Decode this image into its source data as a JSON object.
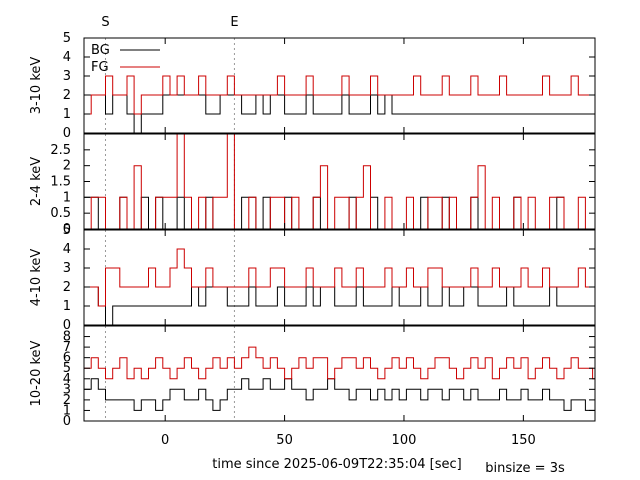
{
  "chart_data": {
    "type": "line",
    "style": "step",
    "xlabel": "time since 2025-06-09T22:35:04 [sec]",
    "xlim": [
      -34,
      180
    ],
    "xticks": [
      0,
      50,
      100,
      150
    ],
    "binsize_label": "binsize = 3s",
    "markers": [
      {
        "label": "S",
        "x": -25
      },
      {
        "label": "E",
        "x": 29
      }
    ],
    "colors": {
      "BG": "#000000",
      "FG": "#cc0000"
    },
    "legend": {
      "placement": "top-left",
      "entries": [
        "BG",
        "FG"
      ]
    },
    "panels": [
      {
        "ylabel": "3-10 keV",
        "ylim": [
          0,
          5
        ],
        "yticks": [
          0,
          1,
          2,
          3,
          4,
          5
        ],
        "series": [
          {
            "name": "BG",
            "x0": -34,
            "dx": 3,
            "values": [
              2,
              2,
              2,
              1,
              2,
              2,
              1,
              0,
              1,
              1,
              1,
              2,
              2,
              2,
              2,
              2,
              2,
              1,
              1,
              2,
              2,
              2,
              1,
              1,
              2,
              1,
              2,
              2,
              1,
              1,
              1,
              2,
              1,
              1,
              1,
              1,
              2,
              1,
              1,
              1,
              2,
              1,
              2,
              1,
              1,
              1,
              1,
              1,
              1,
              1,
              1,
              1,
              1,
              1,
              1,
              1,
              1,
              1,
              1,
              1,
              1,
              1,
              1,
              1,
              1,
              1,
              1,
              1,
              1,
              1,
              1,
              1,
              1,
              1,
              1
            ]
          },
          {
            "name": "FG",
            "x0": -34,
            "dx": 3,
            "values": [
              1,
              2,
              2,
              3,
              2,
              2,
              3,
              1,
              2,
              2,
              2,
              3,
              2,
              3,
              2,
              2,
              3,
              2,
              2,
              2,
              3,
              2,
              2,
              2,
              2,
              2,
              2,
              3,
              2,
              2,
              2,
              3,
              2,
              2,
              2,
              2,
              3,
              2,
              2,
              2,
              3,
              2,
              2,
              2,
              2,
              2,
              3,
              2,
              2,
              2,
              3,
              2,
              2,
              2,
              3,
              2,
              2,
              2,
              3,
              2,
              2,
              2,
              2,
              2,
              3,
              2,
              2,
              2,
              3,
              2,
              2,
              2,
              2,
              2,
              2
            ]
          }
        ]
      },
      {
        "ylabel": "2-4 keV",
        "ylim": [
          0,
          3
        ],
        "yticks": [
          0,
          0.5,
          1,
          1.5,
          2,
          2.5
        ],
        "series": [
          {
            "name": "BG",
            "x0": -34,
            "dx": 3,
            "values": [
              1,
              1,
              0,
              0,
              0,
              1,
              0,
              0,
              1,
              0,
              1,
              0,
              0,
              1,
              0,
              0,
              0,
              1,
              0,
              0,
              0,
              0,
              1,
              1,
              0,
              1,
              0,
              0,
              1,
              0,
              0,
              0,
              1,
              0,
              0,
              0,
              0,
              1,
              0,
              0,
              1,
              0,
              0,
              0,
              0,
              0,
              0,
              1,
              0,
              0,
              1,
              0,
              0,
              0,
              1,
              0,
              0,
              0,
              0,
              0,
              1,
              0,
              0,
              0,
              0,
              0,
              1,
              0,
              0,
              0,
              0,
              0,
              0,
              0,
              0
            ]
          },
          {
            "name": "FG",
            "x0": -34,
            "dx": 3,
            "values": [
              0,
              1,
              1,
              0,
              0,
              1,
              0,
              2,
              0,
              0,
              1,
              1,
              1,
              3,
              1,
              0,
              1,
              0,
              1,
              1,
              3,
              0,
              0,
              1,
              0,
              0,
              1,
              1,
              0,
              1,
              0,
              0,
              1,
              2,
              0,
              1,
              1,
              0,
              1,
              2,
              0,
              0,
              1,
              0,
              0,
              1,
              0,
              0,
              1,
              1,
              0,
              1,
              0,
              0,
              1,
              2,
              0,
              1,
              0,
              0,
              1,
              0,
              1,
              0,
              0,
              1,
              1,
              0,
              0,
              1,
              0,
              0,
              0,
              1,
              0
            ]
          }
        ]
      },
      {
        "ylabel": "4-10 keV",
        "ylim": [
          0,
          5
        ],
        "yticks": [
          0,
          1,
          2,
          3,
          4,
          5
        ],
        "series": [
          {
            "name": "BG",
            "x0": -34,
            "dx": 3,
            "values": [
              2,
              2,
              1,
              0,
              1,
              1,
              1,
              1,
              1,
              1,
              1,
              1,
              1,
              1,
              1,
              2,
              1,
              2,
              2,
              2,
              1,
              1,
              1,
              2,
              1,
              1,
              1,
              2,
              1,
              1,
              1,
              2,
              1,
              2,
              2,
              1,
              1,
              1,
              2,
              1,
              1,
              1,
              1,
              2,
              1,
              1,
              1,
              2,
              1,
              1,
              2,
              1,
              1,
              2,
              2,
              1,
              1,
              1,
              1,
              2,
              1,
              1,
              1,
              1,
              1,
              2,
              1,
              1,
              1,
              1,
              1,
              1,
              1,
              1,
              1
            ]
          },
          {
            "name": "FG",
            "x0": -34,
            "dx": 3,
            "values": [
              2,
              2,
              1,
              3,
              3,
              2,
              2,
              2,
              2,
              3,
              2,
              2,
              3,
              4,
              3,
              2,
              2,
              3,
              2,
              2,
              2,
              2,
              2,
              3,
              2,
              2,
              3,
              3,
              2,
              2,
              2,
              3,
              2,
              2,
              2,
              3,
              2,
              2,
              3,
              2,
              2,
              2,
              3,
              2,
              2,
              3,
              2,
              2,
              3,
              3,
              2,
              2,
              2,
              2,
              3,
              2,
              2,
              3,
              2,
              2,
              2,
              3,
              2,
              2,
              3,
              2,
              2,
              2,
              2,
              3,
              2,
              2,
              3,
              2,
              2
            ]
          }
        ]
      },
      {
        "ylabel": "10-20 keV",
        "ylim": [
          0,
          9
        ],
        "yticks": [
          0,
          1,
          2,
          3,
          4,
          5,
          6,
          7,
          8
        ],
        "series": [
          {
            "name": "BG",
            "x0": -34,
            "dx": 3,
            "values": [
              3,
              4,
              3,
              2,
              2,
              2,
              2,
              1,
              2,
              2,
              1,
              2,
              3,
              3,
              2,
              2,
              3,
              2,
              1,
              2,
              3,
              3,
              4,
              3,
              3,
              4,
              3,
              3,
              4,
              3,
              3,
              2,
              3,
              3,
              4,
              3,
              3,
              2,
              3,
              3,
              2,
              3,
              2,
              3,
              2,
              3,
              3,
              2,
              3,
              3,
              2,
              3,
              3,
              2,
              3,
              2,
              2,
              2,
              3,
              2,
              2,
              3,
              2,
              2,
              3,
              2,
              2,
              1,
              2,
              2,
              1,
              1,
              1,
              1,
              1
            ]
          },
          {
            "name": "FG",
            "x0": -34,
            "dx": 3,
            "values": [
              5,
              6,
              5,
              4,
              5,
              6,
              4,
              5,
              4,
              5,
              6,
              5,
              4,
              5,
              6,
              5,
              4,
              5,
              6,
              5,
              6,
              5,
              6,
              7,
              6,
              5,
              6,
              5,
              4,
              5,
              6,
              5,
              6,
              6,
              4,
              5,
              6,
              6,
              5,
              6,
              5,
              4,
              5,
              6,
              5,
              6,
              5,
              4,
              5,
              6,
              6,
              5,
              4,
              5,
              6,
              5,
              6,
              4,
              5,
              6,
              5,
              6,
              4,
              5,
              6,
              5,
              4,
              5,
              6,
              5,
              5,
              4,
              5,
              6,
              5
            ]
          }
        ]
      }
    ]
  }
}
